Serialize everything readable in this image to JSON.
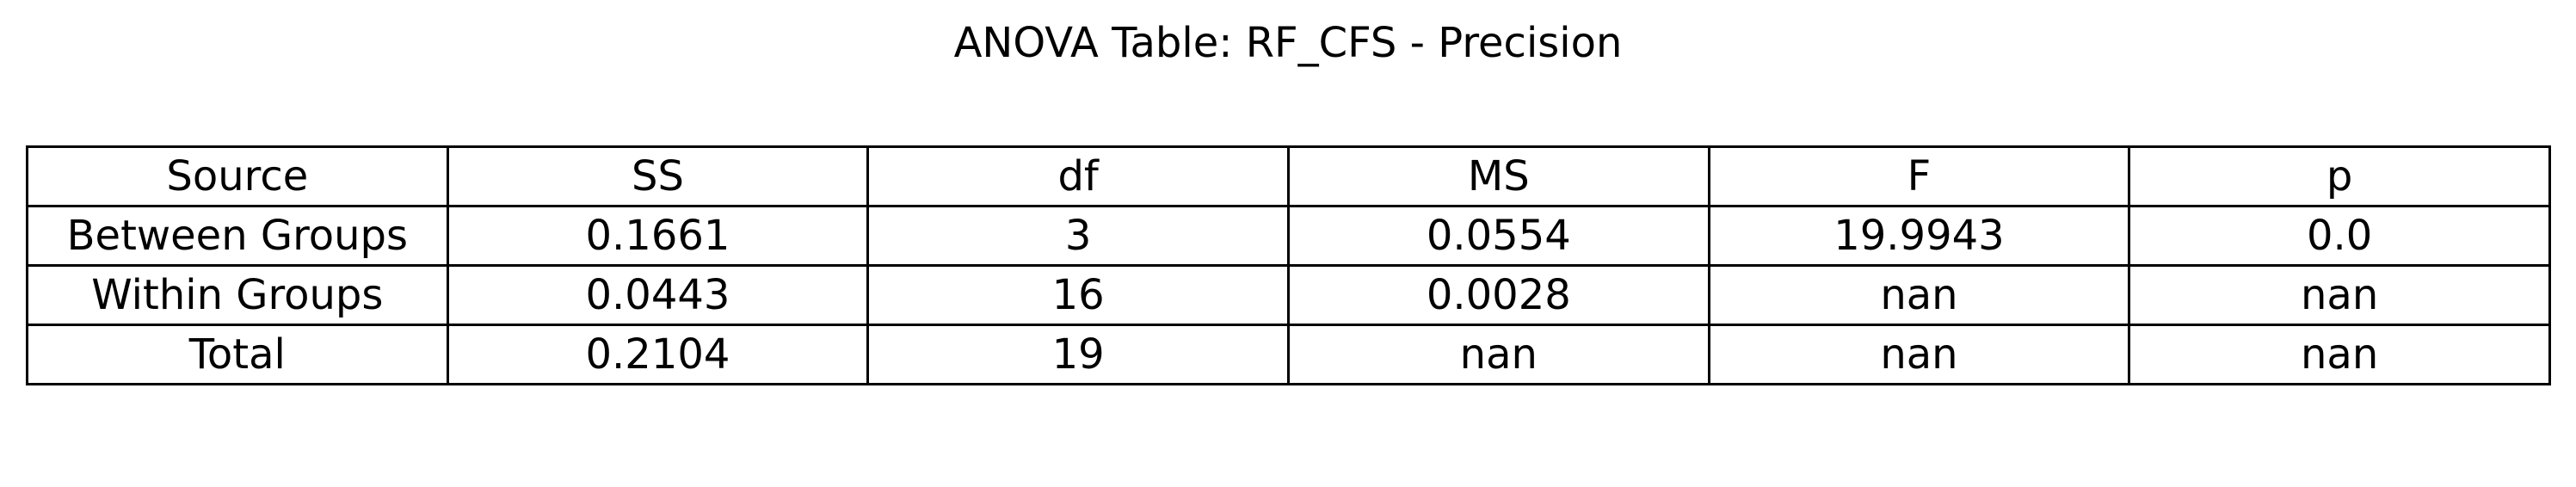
{
  "chart_data": {
    "type": "table",
    "title": "ANOVA Table: RF_CFS - Precision",
    "columns": [
      "Source",
      "SS",
      "df",
      "MS",
      "F",
      "p"
    ],
    "rows": [
      [
        "Between Groups",
        "0.1661",
        "3",
        "0.0554",
        "19.9943",
        "0.0"
      ],
      [
        "Within Groups",
        "0.0443",
        "16",
        "0.0028",
        "nan",
        "nan"
      ],
      [
        "Total",
        "0.2104",
        "19",
        "nan",
        "nan",
        "nan"
      ]
    ]
  }
}
